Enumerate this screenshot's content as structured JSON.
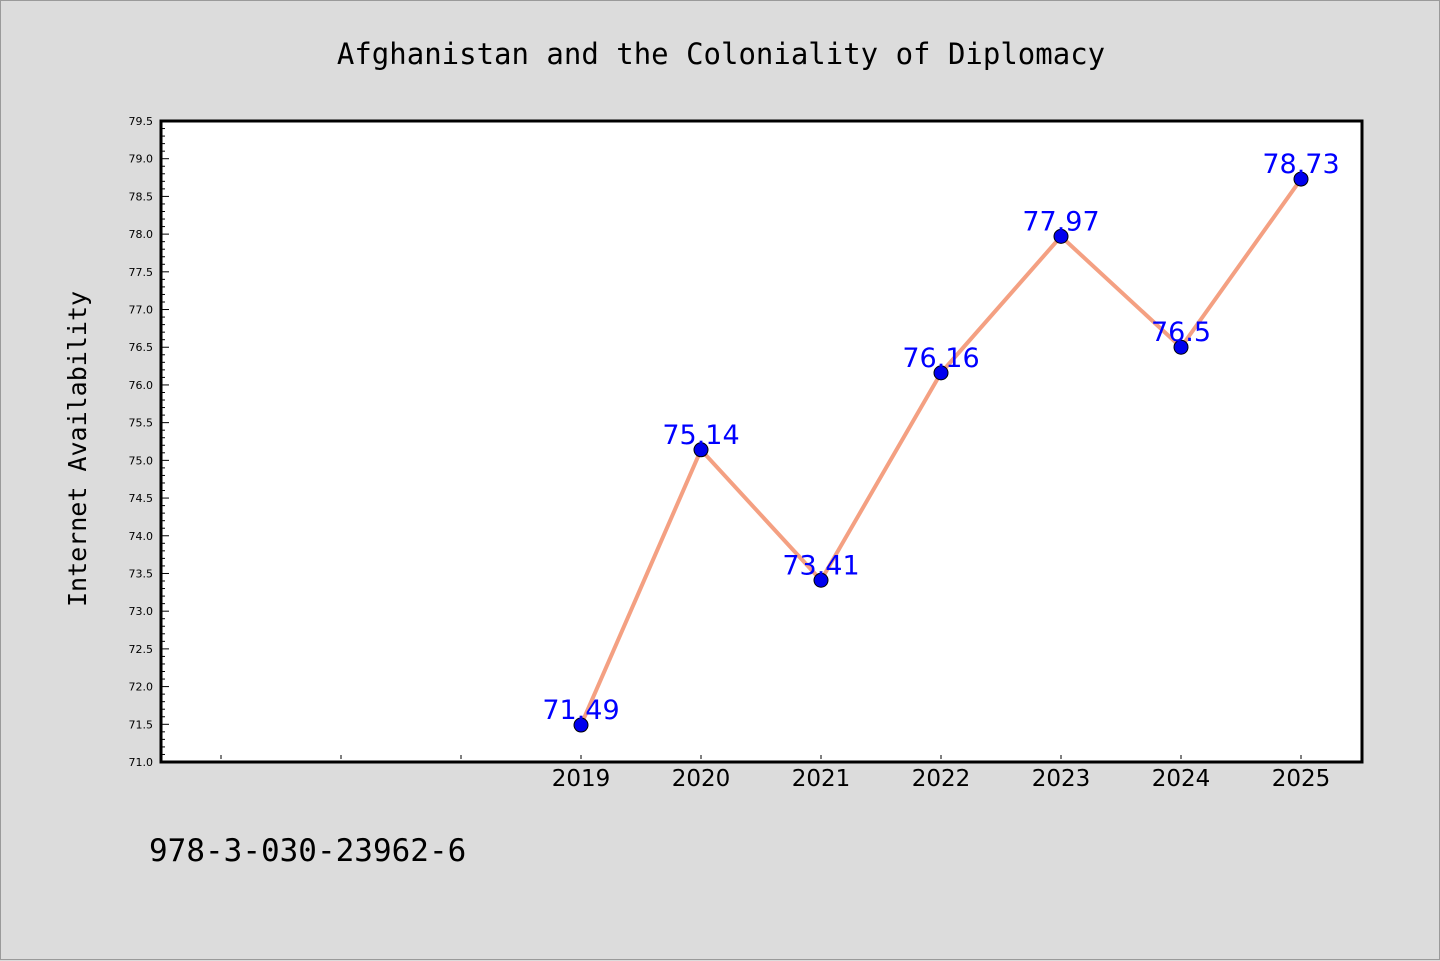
{
  "chart_data": {
    "type": "line",
    "title": "Afghanistan and the Coloniality of Diplomacy",
    "xlabel": "",
    "ylabel": "Internet Availability",
    "categories": [
      "",
      "",
      "",
      "2019",
      "2020",
      "2021",
      "2022",
      "2023",
      "2024",
      "2025"
    ],
    "series": [
      {
        "values": [
          null,
          null,
          null,
          71.49,
          75.14,
          73.41,
          76.16,
          77.97,
          76.5,
          78.73
        ]
      }
    ],
    "data_labels": [
      "",
      "",
      "",
      "71.49",
      "75.14",
      "73.41",
      "76.16",
      "77.97",
      "76.5",
      "78.73"
    ],
    "ylim": [
      71.0,
      79.5
    ],
    "y_tick_step": 0.5,
    "y_minor_step": 0.1,
    "y_tick_labels": [
      "71.0",
      "71.5",
      "72.0",
      "72.5",
      "73.0",
      "73.5",
      "74.0",
      "74.5",
      "75.0",
      "75.5",
      "76.0",
      "76.5",
      "77.0",
      "77.5",
      "78.0",
      "78.5",
      "79.0",
      "79.5"
    ],
    "grid": false,
    "colors": {
      "line": "#f4a082",
      "marker": "#0000ee",
      "label": "#0000ff",
      "background": "#dcdcdc",
      "plot_area": "#ffffff"
    }
  },
  "footer": {
    "isbn": "978-3-030-23962-6"
  }
}
